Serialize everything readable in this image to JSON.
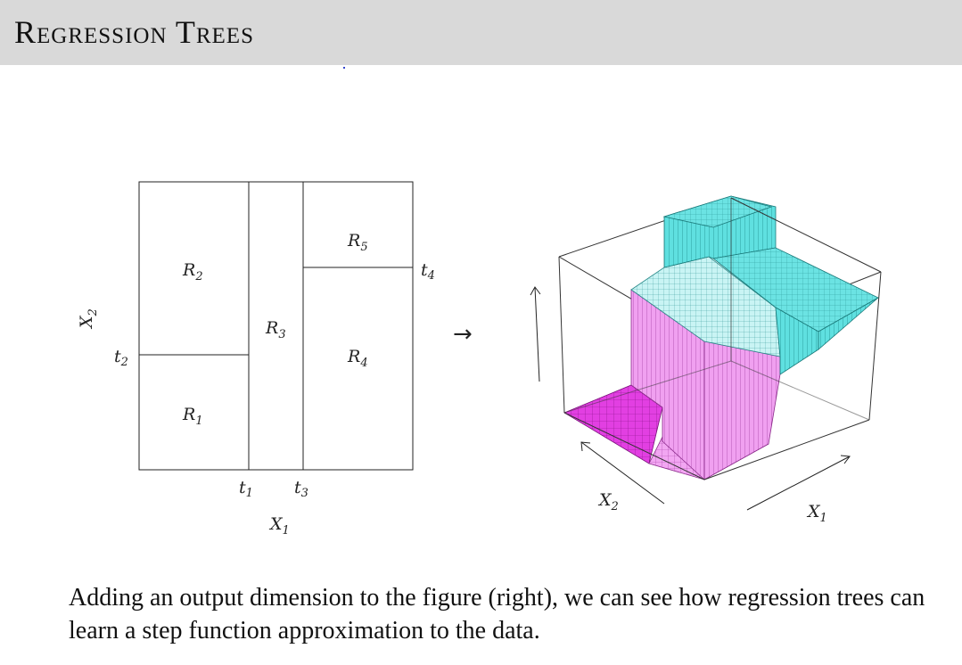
{
  "slide": {
    "title": "Regression Trees",
    "caption": "Adding an output dimension to the figure (right), we can see how regression trees can learn a step function approximation to the data."
  },
  "partition": {
    "regions": [
      "R",
      "R",
      "R",
      "R",
      "R"
    ],
    "region_subscripts": [
      "1",
      "2",
      "3",
      "4",
      "5"
    ],
    "thresholds": [
      "t",
      "t",
      "t",
      "t"
    ],
    "threshold_subscripts": [
      "1",
      "2",
      "3",
      "4"
    ],
    "x_label": "X",
    "x_subscript": "1",
    "y_label": "X",
    "y_subscript": "2"
  },
  "surface": {
    "arrow": "→",
    "x1_label": "X",
    "x1_subscript": "1",
    "x2_label": "X",
    "x2_subscript": "2",
    "colors": {
      "low": "#e23fe2",
      "mid": "#f3a8f3",
      "high": "#5fe0e0",
      "top": "#48d4d4"
    }
  }
}
